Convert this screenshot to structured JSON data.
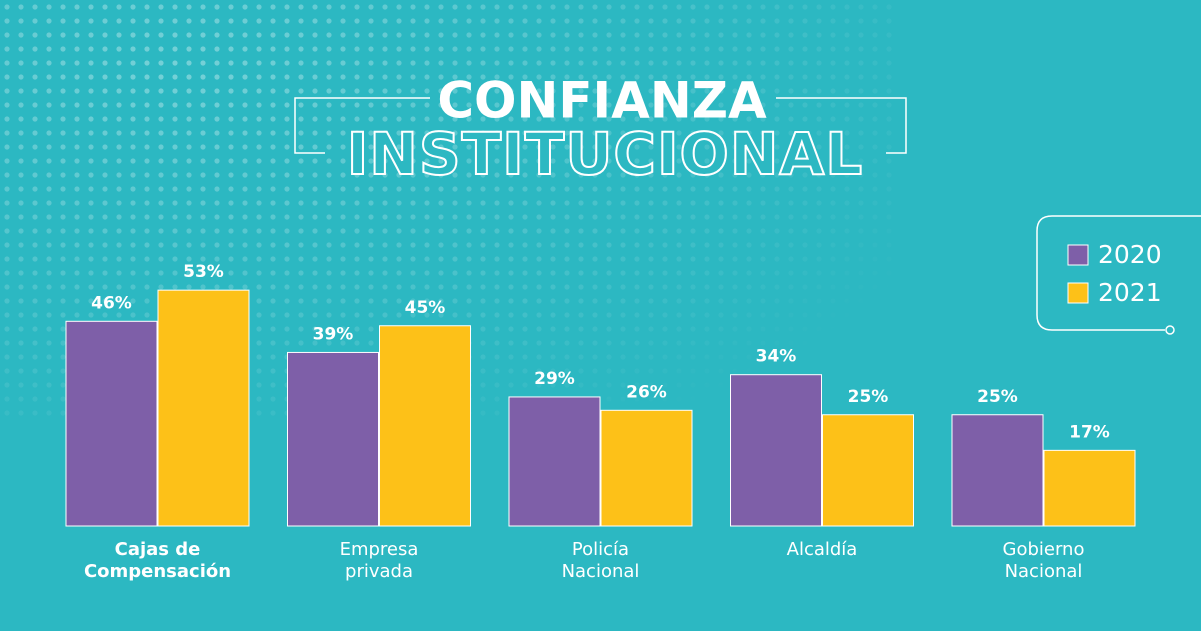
{
  "chart_data": {
    "type": "bar",
    "title": "CONFIANZA",
    "subtitle": "INSTITUCIONAL",
    "categories": [
      [
        "Cajas de",
        "Compensación"
      ],
      [
        "Empresa",
        "privada"
      ],
      [
        "Policía",
        "Nacional"
      ],
      [
        "Alcaldía"
      ],
      [
        "Gobierno",
        "Nacional"
      ]
    ],
    "series": [
      {
        "name": "2020",
        "color": "#7e5fa8",
        "values": [
          46,
          39,
          29,
          34,
          25
        ],
        "value_labels": [
          "46%",
          "39%",
          "29%",
          "34%",
          "25%"
        ]
      },
      {
        "name": "2021",
        "color": "#fdc118",
        "values": [
          53,
          45,
          26,
          25,
          17
        ],
        "value_labels": [
          "53%",
          "45%",
          "26%",
          "25%",
          "17%"
        ]
      }
    ]
  }
}
